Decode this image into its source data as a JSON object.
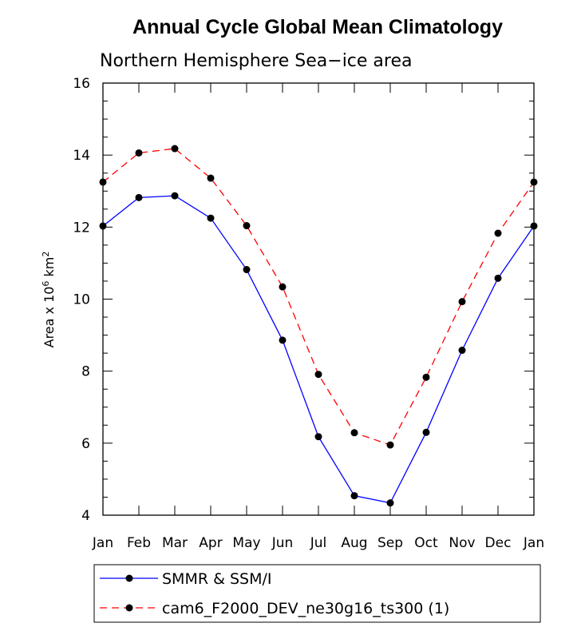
{
  "chart_data": {
    "type": "line",
    "title": "Annual Cycle Global Mean Climatology",
    "subtitle": "Northern Hemisphere Sea−ice area",
    "ylabel_main": "Area x 10",
    "ylabel_exp1": "6",
    "ylabel_unit": " km",
    "ylabel_exp2": "2",
    "xlabel": "",
    "ylim": [
      4,
      16
    ],
    "yticks": [
      4,
      6,
      8,
      10,
      12,
      14,
      16
    ],
    "ytick_labels": [
      "4",
      "6",
      "8",
      "10",
      "12",
      "14",
      "16"
    ],
    "categories": [
      "Jan",
      "Feb",
      "Mar",
      "Apr",
      "May",
      "Jun",
      "Jul",
      "Aug",
      "Sep",
      "Oct",
      "Nov",
      "Dec",
      "Jan"
    ],
    "series": [
      {
        "name": "SMMR & SSM/I",
        "color": "#0000ff",
        "dash": "solid",
        "values": [
          12.03,
          12.82,
          12.87,
          12.25,
          10.82,
          8.86,
          6.18,
          4.54,
          4.34,
          6.3,
          8.58,
          10.58,
          12.03
        ]
      },
      {
        "name": "cam6_F2000_DEV_ne30g16_ts300 (1)",
        "color": "#ff0000",
        "dash": "dashed",
        "values": [
          13.25,
          14.06,
          14.18,
          13.36,
          12.04,
          10.34,
          7.91,
          6.29,
          5.95,
          7.83,
          9.93,
          11.83,
          13.25
        ]
      }
    ]
  }
}
